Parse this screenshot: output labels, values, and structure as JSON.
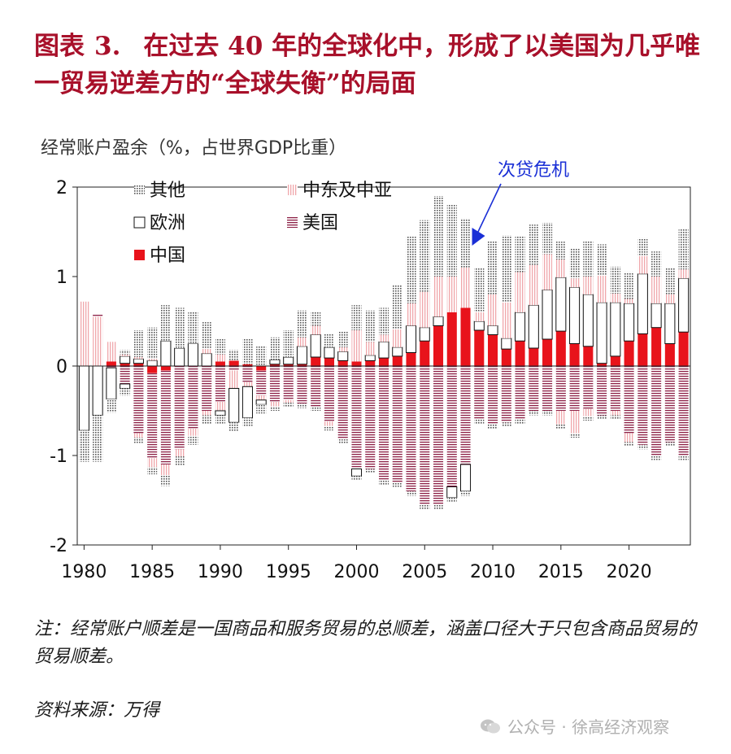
{
  "header": {
    "label": "图表",
    "number": "3.",
    "title": "在过去 40 年的全球化中，形成了以美国为几乎唯一贸易逆差方的“全球失衡”的局面"
  },
  "unit_label": "经常账户盈余（%，占世界GDP比重）",
  "note": "注：经常账户顺差是一国商品和服务贸易的总顺差，涵盖口径大于只包含商品贸易的贸易顺差。",
  "source": "资料来源：万得",
  "watermark": "公众号 · 徐高经济观察",
  "colors": {
    "title": "#a8102a",
    "china": "#e8131b",
    "usa": "#8c1f45",
    "middle_east": "#f0a7ab",
    "other": "#555555",
    "europe": "#ffffff",
    "annotation": "#1a2fd6"
  },
  "chart_data": {
    "type": "bar",
    "stacked": true,
    "ylim": [
      -2,
      2
    ],
    "yticks": [
      -2,
      -1,
      0,
      1,
      2
    ],
    "xtick_labels": [
      "1980",
      "1985",
      "1990",
      "1995",
      "2000",
      "2005",
      "2010",
      "2015",
      "2020"
    ],
    "legend_position": "top-left",
    "annotation": {
      "text": "次贷危机",
      "year": 2008
    },
    "years": [
      1980,
      1981,
      1982,
      1983,
      1984,
      1985,
      1986,
      1987,
      1988,
      1989,
      1990,
      1991,
      1992,
      1993,
      1994,
      1995,
      1996,
      1997,
      1998,
      1999,
      2000,
      2001,
      2002,
      2003,
      2004,
      2005,
      2006,
      2007,
      2008,
      2009,
      2010,
      2011,
      2012,
      2013,
      2014,
      2015,
      2016,
      2017,
      2018,
      2019,
      2020,
      2021,
      2022,
      2023,
      2024
    ],
    "series": [
      {
        "name": "其他",
        "key": "other",
        "positive": [
          0,
          0,
          0,
          0.05,
          0.3,
          0.35,
          0.4,
          0.45,
          0.35,
          0.3,
          0.18,
          0.12,
          0.28,
          0.22,
          0.25,
          0.3,
          0.3,
          0.15,
          0.15,
          0.18,
          0.28,
          0.35,
          0.3,
          0.5,
          0.75,
          0.8,
          0.9,
          0.8,
          0.55,
          0.5,
          0.6,
          0.75,
          0.4,
          0.45,
          0.35,
          0.2,
          0.33,
          0.4,
          0.35,
          0.3,
          0.3,
          0.2,
          0.28,
          0.3,
          0.45
        ],
        "negative": [
          -0.35,
          -0.52,
          -0.15,
          -0.08,
          -0.06,
          -0.08,
          -0.12,
          -0.1,
          -0.1,
          -0.1,
          -0.1,
          -0.1,
          -0.1,
          -0.1,
          -0.05,
          -0.05,
          -0.05,
          -0.05,
          -0.05,
          -0.05,
          -0.05,
          -0.05,
          -0.05,
          -0.05,
          -0.05,
          -0.05,
          -0.05,
          -0.05,
          -0.05,
          -0.05,
          -0.05,
          -0.05,
          -0.05,
          -0.05,
          -0.05,
          -0.05,
          -0.05,
          -0.05,
          -0.05,
          -0.05,
          -0.05,
          -0.05,
          -0.05,
          -0.05,
          -0.05
        ]
      },
      {
        "name": "中东及中亚",
        "key": "middle_east",
        "positive": [
          0.72,
          0.55,
          0.22,
          0.02,
          0.02,
          0.02,
          0,
          0,
          0,
          0.05,
          0.08,
          0,
          0,
          0,
          0,
          0,
          0.1,
          0.1,
          0,
          0.05,
          0.35,
          0.15,
          0.08,
          0.2,
          0.25,
          0.4,
          0.45,
          0.4,
          0.45,
          0.1,
          0.35,
          0.4,
          0.45,
          0.45,
          0.4,
          0.2,
          0.1,
          0.2,
          0.3,
          0.1,
          0.05,
          0.2,
          0.3,
          0.1,
          0.1
        ],
        "negative": [
          0,
          0,
          0,
          0,
          -0.05,
          -0.1,
          -0.12,
          -0.08,
          -0.08,
          -0.05,
          -0.1,
          -0.2,
          -0.05,
          -0.05,
          -0.05,
          -0.03,
          0,
          0,
          -0.05,
          0,
          0,
          0,
          0,
          0,
          0,
          0,
          0,
          0,
          0,
          0,
          0,
          0,
          0,
          0,
          0,
          -0.15,
          -0.25,
          -0.08,
          0,
          -0.05,
          -0.1,
          0,
          0,
          0,
          0
        ]
      },
      {
        "name": "欧洲",
        "key": "europe",
        "positive": [
          0,
          0,
          0,
          0.08,
          0.05,
          0.06,
          0.28,
          0.2,
          0.25,
          0.14,
          0,
          0,
          0,
          0,
          0.05,
          0.08,
          0.2,
          0.25,
          0.12,
          0.1,
          0,
          0.06,
          0.18,
          0.1,
          0.3,
          0.15,
          0.1,
          0,
          0,
          0.1,
          0.1,
          0.12,
          0.32,
          0.48,
          0.55,
          0.6,
          0.63,
          0.58,
          0.68,
          0.6,
          0.42,
          0.67,
          0.27,
          0.45,
          0.6
        ],
        "negative": [
          -0.72,
          -0.55,
          -0.35,
          -0.05,
          0,
          0,
          0,
          0,
          0,
          0,
          -0.05,
          -0.38,
          -0.35,
          -0.05,
          0,
          0,
          0,
          0,
          0,
          0,
          -0.08,
          0,
          0,
          0,
          0,
          0,
          0,
          -0.12,
          -0.3,
          0,
          0,
          0,
          0,
          0,
          0,
          0,
          0,
          0,
          0,
          0,
          0,
          0,
          0,
          0,
          0
        ]
      },
      {
        "name": "美国",
        "key": "usa",
        "positive": [
          0,
          0.03,
          0,
          0,
          0,
          0,
          0,
          0,
          0,
          0,
          0,
          0,
          0,
          0,
          0,
          0,
          0,
          0,
          0,
          0,
          0,
          0,
          0,
          0,
          0,
          0,
          0,
          0,
          0,
          0,
          0,
          0,
          0,
          0,
          0,
          0,
          0,
          0,
          0,
          0,
          0,
          0,
          0,
          0,
          0
        ],
        "negative": [
          0,
          0,
          -0.02,
          -0.2,
          -0.75,
          -0.95,
          -1.05,
          -0.93,
          -0.7,
          -0.5,
          -0.4,
          -0.05,
          -0.18,
          -0.28,
          -0.4,
          -0.38,
          -0.42,
          -0.45,
          -0.62,
          -0.82,
          -1.15,
          -1.15,
          -1.28,
          -1.3,
          -1.4,
          -1.55,
          -1.55,
          -1.35,
          -1.1,
          -0.6,
          -0.65,
          -0.63,
          -0.6,
          -0.5,
          -0.5,
          -0.5,
          -0.5,
          -0.48,
          -0.55,
          -0.5,
          -0.75,
          -0.88,
          -1.0,
          -0.85,
          -1.0
        ]
      },
      {
        "name": "中国",
        "key": "china",
        "positive": [
          0,
          0,
          0.05,
          0.03,
          0.03,
          0,
          0,
          0,
          0,
          0,
          0.05,
          0.06,
          0.02,
          0,
          0.02,
          0.02,
          0.02,
          0.1,
          0.09,
          0.06,
          0.05,
          0.06,
          0.09,
          0.11,
          0.15,
          0.28,
          0.45,
          0.6,
          0.65,
          0.4,
          0.35,
          0.19,
          0.28,
          0.2,
          0.3,
          0.39,
          0.25,
          0.22,
          0.03,
          0.11,
          0.28,
          0.36,
          0.43,
          0.25,
          0.38
        ],
        "negative": [
          0,
          0,
          0,
          0,
          0,
          -0.08,
          -0.05,
          0,
          0,
          0,
          0,
          0,
          0,
          -0.05,
          0,
          0,
          0,
          0,
          0,
          0,
          0,
          0,
          0,
          0,
          0,
          0,
          0,
          0,
          0,
          0,
          0,
          0,
          0,
          0,
          0,
          0,
          0,
          0,
          0,
          0,
          0,
          0,
          0,
          0,
          0
        ]
      }
    ]
  }
}
